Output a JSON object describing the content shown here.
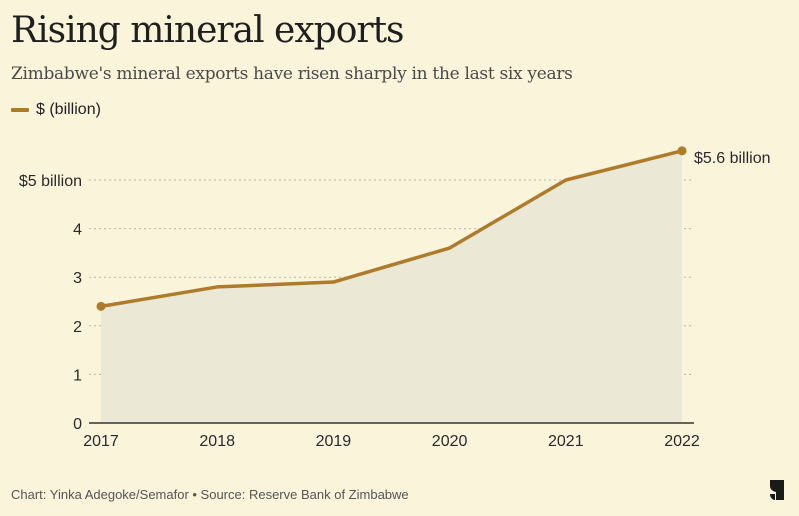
{
  "header": {
    "title": "Rising mineral exports",
    "subtitle": "Zimbabwe's mineral exports have risen sharply in the last six years"
  },
  "legend": {
    "label": "$ (billion)",
    "color": "#ae7b2b"
  },
  "footer": {
    "credit": "Chart: Yinka Adegoke/Semafor • Source: Reserve Bank of Zimbabwe",
    "logo": "semafor-logo-icon"
  },
  "colors": {
    "background": "#f9f4da",
    "line": "#ae7b2b",
    "area": "#ebe8d6",
    "grid": "#b9b6a6",
    "axis": "#333333"
  },
  "chart_data": {
    "type": "area",
    "title": "Rising mineral exports",
    "subtitle": "Zimbabwe's mineral exports have risen sharply in the last six years",
    "xlabel": "",
    "ylabel": "$ (billion)",
    "x": [
      "2017",
      "2018",
      "2019",
      "2020",
      "2021",
      "2022"
    ],
    "series": [
      {
        "name": "$ (billion)",
        "values": [
          2.4,
          2.8,
          2.9,
          3.6,
          5.0,
          5.6
        ]
      }
    ],
    "ylim": [
      0,
      5.6
    ],
    "yticks": [
      0,
      1,
      2,
      3,
      4,
      5
    ],
    "ytick_labels": [
      "0",
      "1",
      "2",
      "3",
      "4",
      "$5 billion"
    ],
    "grid": true,
    "legend_position": "top-left",
    "annotations": [
      {
        "x": "2022",
        "value": 5.6,
        "text": "$5.6 billion"
      }
    ],
    "markers_on": [
      "2017",
      "2022"
    ]
  }
}
